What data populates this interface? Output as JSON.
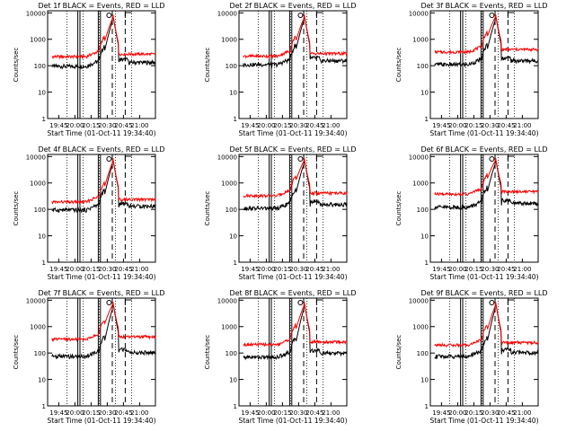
{
  "figure": {
    "xlabel": "Start Time (01-Oct-11 19:34:40)",
    "ylabel": "Counts/sec"
  },
  "chart_data": [
    {
      "type": "line",
      "title": "Det 1f BLACK = Events, RED = LLD",
      "xlabel": "Start Time (01-Oct-11 19:34:40)",
      "ylabel": "Counts/sec",
      "yscale": "log",
      "ylim": [
        1,
        12000
      ],
      "xticks": [
        "19:45",
        "20:00",
        "20:15",
        "20:30",
        "20:45",
        "21:00"
      ],
      "yticks": [
        "1",
        "10",
        "100",
        "1000",
        "10000"
      ],
      "series": [
        {
          "name": "Events",
          "color": "#000000",
          "baseline": 95,
          "peak": 11000
        },
        {
          "name": "LLD",
          "color": "#ff0000",
          "baseline": 220,
          "peak": 11000
        }
      ]
    },
    {
      "type": "line",
      "title": "Det 2f BLACK = Events, RED = LLD",
      "xlabel": "Start Time (01-Oct-11 19:34:40)",
      "ylabel": "Counts/sec",
      "yscale": "log",
      "ylim": [
        1,
        12000
      ],
      "xticks": [
        "19:45",
        "20:00",
        "20:15",
        "20:30",
        "20:45",
        "21:00"
      ],
      "yticks": [
        "1",
        "10",
        "100",
        "1000",
        "10000"
      ],
      "series": [
        {
          "name": "Events",
          "color": "#000000",
          "baseline": 110,
          "peak": 11000
        },
        {
          "name": "LLD",
          "color": "#ff0000",
          "baseline": 230,
          "peak": 11000
        }
      ]
    },
    {
      "type": "line",
      "title": "Det 3f BLACK = Events, RED = LLD",
      "xlabel": "Start Time (01-Oct-11 19:34:40)",
      "ylabel": "Counts/sec",
      "yscale": "log",
      "ylim": [
        1,
        12000
      ],
      "xticks": [
        "19:45",
        "20:00",
        "20:15",
        "20:30",
        "20:45",
        "21:00"
      ],
      "yticks": [
        "1",
        "10",
        "100",
        "1000",
        "10000"
      ],
      "series": [
        {
          "name": "Events",
          "color": "#000000",
          "baseline": 110,
          "peak": 11000
        },
        {
          "name": "LLD",
          "color": "#ff0000",
          "baseline": 330,
          "peak": 11000
        }
      ]
    },
    {
      "type": "line",
      "title": "Det 4f BLACK = Events, RED = LLD",
      "xlabel": "Start Time (01-Oct-11 19:34:40)",
      "ylabel": "Counts/sec",
      "yscale": "log",
      "ylim": [
        1,
        12000
      ],
      "xticks": [
        "19:45",
        "20:00",
        "20:15",
        "20:30",
        "20:45",
        "21:00"
      ],
      "yticks": [
        "1",
        "10",
        "100",
        "1000",
        "10000"
      ],
      "series": [
        {
          "name": "Events",
          "color": "#000000",
          "baseline": 95,
          "peak": 11000
        },
        {
          "name": "LLD",
          "color": "#ff0000",
          "baseline": 190,
          "peak": 11000
        }
      ]
    },
    {
      "type": "line",
      "title": "Det 5f BLACK = Events, RED = LLD",
      "xlabel": "Start Time (01-Oct-11 19:34:40)",
      "ylabel": "Counts/sec",
      "yscale": "log",
      "ylim": [
        1,
        12000
      ],
      "xticks": [
        "19:45",
        "20:00",
        "20:15",
        "20:30",
        "20:45",
        "21:00"
      ],
      "yticks": [
        "1",
        "10",
        "100",
        "1000",
        "10000"
      ],
      "series": [
        {
          "name": "Events",
          "color": "#000000",
          "baseline": 110,
          "peak": 11000
        },
        {
          "name": "LLD",
          "color": "#ff0000",
          "baseline": 330,
          "peak": 11000
        }
      ]
    },
    {
      "type": "line",
      "title": "Det 6f BLACK = Events, RED = LLD",
      "xlabel": "Start Time (01-Oct-11 19:34:40)",
      "ylabel": "Counts/sec",
      "yscale": "log",
      "ylim": [
        1,
        12000
      ],
      "xticks": [
        "19:45",
        "20:00",
        "20:15",
        "20:30",
        "20:45",
        "21:00"
      ],
      "yticks": [
        "1",
        "10",
        "100",
        "1000",
        "10000"
      ],
      "series": [
        {
          "name": "Events",
          "color": "#000000",
          "baseline": 120,
          "peak": 11000
        },
        {
          "name": "LLD",
          "color": "#ff0000",
          "baseline": 380,
          "peak": 11000
        }
      ]
    },
    {
      "type": "line",
      "title": "Det 7f BLACK = Events, RED = LLD",
      "xlabel": "Start Time (01-Oct-11 19:34:40)",
      "ylabel": "Counts/sec",
      "yscale": "log",
      "ylim": [
        1,
        12000
      ],
      "xticks": [
        "19:45",
        "20:00",
        "20:15",
        "20:30",
        "20:45",
        "21:00"
      ],
      "yticks": [
        "1",
        "10",
        "100",
        "1000",
        "10000"
      ],
      "series": [
        {
          "name": "Events",
          "color": "#000000",
          "baseline": 75,
          "peak": 11000
        },
        {
          "name": "LLD",
          "color": "#ff0000",
          "baseline": 330,
          "peak": 11000
        }
      ]
    },
    {
      "type": "line",
      "title": "Det 8f BLACK = Events, RED = LLD",
      "xlabel": "Start Time (01-Oct-11 19:34:40)",
      "ylabel": "Counts/sec",
      "yscale": "log",
      "ylim": [
        1,
        12000
      ],
      "xticks": [
        "19:45",
        "20:00",
        "20:15",
        "20:30",
        "20:45",
        "21:00"
      ],
      "yticks": [
        "1",
        "10",
        "100",
        "1000",
        "10000"
      ],
      "series": [
        {
          "name": "Events",
          "color": "#000000",
          "baseline": 70,
          "peak": 11000
        },
        {
          "name": "LLD",
          "color": "#ff0000",
          "baseline": 210,
          "peak": 11000
        }
      ]
    },
    {
      "type": "line",
      "title": "Det 9f BLACK = Events, RED = LLD",
      "xlabel": "Start Time (01-Oct-11 19:34:40)",
      "ylabel": "Counts/sec",
      "yscale": "log",
      "ylim": [
        1,
        12000
      ],
      "xticks": [
        "19:45",
        "20:00",
        "20:15",
        "20:30",
        "20:45",
        "21:00"
      ],
      "yticks": [
        "1",
        "10",
        "100",
        "1000",
        "10000"
      ],
      "series": [
        {
          "name": "Events",
          "color": "#000000",
          "baseline": 75,
          "peak": 11000
        },
        {
          "name": "LLD",
          "color": "#ff0000",
          "baseline": 200,
          "peak": 11000
        }
      ]
    }
  ]
}
